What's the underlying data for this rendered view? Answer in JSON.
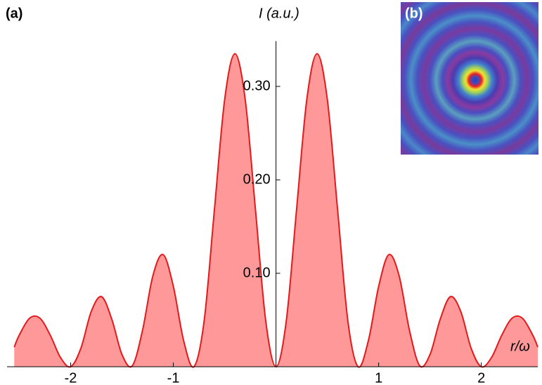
{
  "chart_data": {
    "type": "area",
    "panel_labels": [
      "(a)",
      "(b)"
    ],
    "y_label": "I (a.u.)",
    "x_label": "r/ω",
    "x": [
      -2.55,
      -2.5,
      -2.4,
      -2.3,
      -2.2,
      -2.1,
      -2.0,
      -1.9,
      -1.8,
      -1.7,
      -1.6,
      -1.5,
      -1.4,
      -1.3,
      -1.2,
      -1.1,
      -1.0,
      -0.9,
      -0.8,
      -0.7,
      -0.6,
      -0.5,
      -0.4,
      -0.3,
      -0.2,
      -0.1,
      0,
      0.1,
      0.2,
      0.3,
      0.4,
      0.5,
      0.6,
      0.7,
      0.8,
      0.9,
      1.0,
      1.1,
      1.2,
      1.3,
      1.4,
      1.5,
      1.6,
      1.7,
      1.8,
      1.9,
      2.0,
      2.1,
      2.2,
      2.3,
      2.4,
      2.5,
      2.55
    ],
    "values": [
      0.021,
      0.034,
      0.052,
      0.052,
      0.034,
      0.01,
      0,
      0.02,
      0.059,
      0.075,
      0.051,
      0.013,
      0.001,
      0.039,
      0.097,
      0.12,
      0.086,
      0.028,
      0,
      0.049,
      0.168,
      0.286,
      0.335,
      0.286,
      0.168,
      0.049,
      0,
      0.049,
      0.168,
      0.286,
      0.335,
      0.286,
      0.168,
      0.049,
      0,
      0.028,
      0.086,
      0.12,
      0.097,
      0.039,
      0.001,
      0.013,
      0.051,
      0.075,
      0.059,
      0.02,
      0,
      0.01,
      0.034,
      0.052,
      0.052,
      0.034,
      0.021
    ],
    "color": "#e31a1c",
    "fill_color": "#ff9999",
    "xlim": [
      -2.62,
      2.55
    ],
    "ylim": [
      0,
      0.35
    ],
    "xticks": [
      -2,
      -1,
      1,
      2
    ],
    "yticks": [
      {
        "value": 0.1,
        "label": "0.10"
      },
      {
        "value": 0.2,
        "label": "0.20"
      },
      {
        "value": 0.3,
        "label": "0.30"
      }
    ]
  }
}
